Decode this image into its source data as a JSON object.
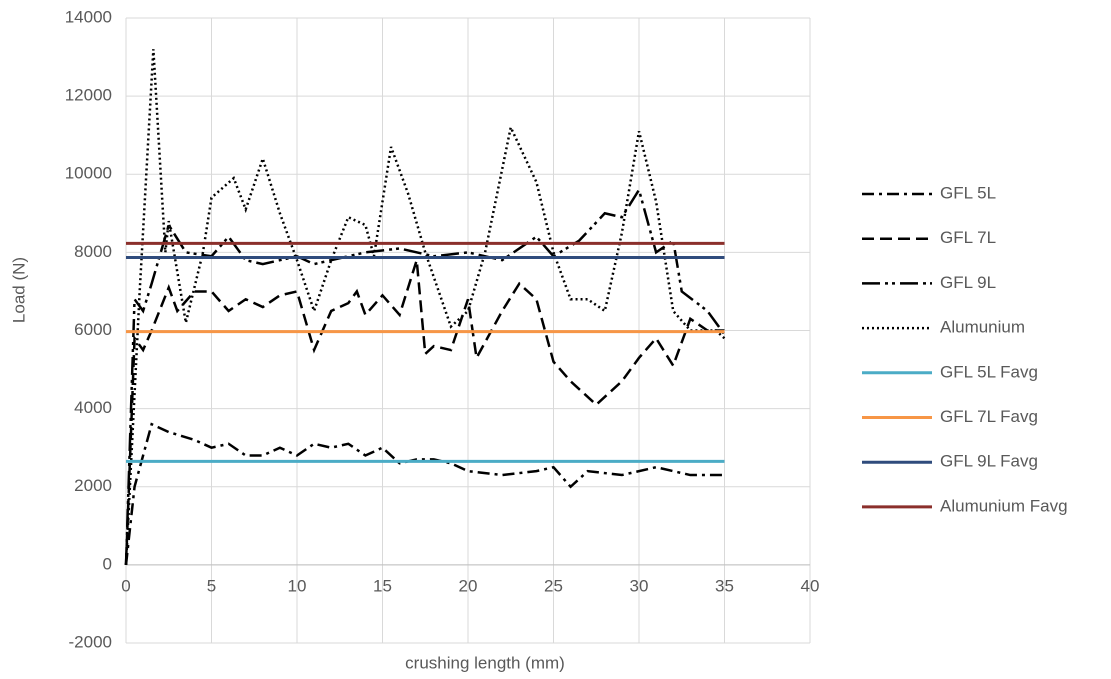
{
  "chart_data": {
    "type": "line",
    "x_label": "crushing length (mm)",
    "y_label": "Load (N)",
    "xlim": [
      0,
      40
    ],
    "xticks": [
      0,
      5,
      10,
      15,
      20,
      25,
      30,
      35,
      40
    ],
    "ylim": [
      -2000,
      14000
    ],
    "yticks": [
      -2000,
      0,
      2000,
      4000,
      6000,
      8000,
      10000,
      12000,
      14000
    ],
    "grid": true,
    "legend": "right",
    "series": [
      {
        "name": "GFL 5L",
        "color": "#000000",
        "style": "dash-dot",
        "x": [
          0,
          0.5,
          1,
          1.5,
          2.5,
          4,
          5,
          6,
          7,
          8,
          9,
          10,
          11,
          12,
          13,
          14,
          15,
          16,
          17,
          18,
          19,
          20,
          22,
          24,
          25,
          26,
          27,
          29,
          31,
          33,
          35
        ],
        "values": [
          0,
          2000,
          2800,
          3600,
          3400,
          3200,
          3000,
          3100,
          2800,
          2800,
          3000,
          2800,
          3100,
          3000,
          3100,
          2800,
          3000,
          2600,
          2700,
          2700,
          2600,
          2400,
          2300,
          2400,
          2500,
          2000,
          2400,
          2300,
          2500,
          2300,
          2300
        ]
      },
      {
        "name": "GFL 7L",
        "color": "#000000",
        "style": "dash",
        "x": [
          0,
          0.5,
          1,
          1.5,
          2.5,
          3,
          4,
          5,
          6,
          7,
          8,
          9,
          10,
          11,
          12,
          13,
          13.5,
          14,
          15,
          16,
          17,
          17.5,
          18,
          19,
          20,
          20.5,
          22,
          23,
          24,
          25,
          26,
          27.5,
          29,
          30,
          31,
          32,
          33,
          34,
          35
        ],
        "values": [
          0,
          5800,
          5500,
          6000,
          7100,
          6500,
          7000,
          7000,
          6500,
          6800,
          6600,
          6900,
          7000,
          5500,
          6500,
          6700,
          7000,
          6400,
          6900,
          6400,
          7800,
          5400,
          5600,
          5500,
          6800,
          5300,
          6500,
          7200,
          6800,
          5200,
          4700,
          4100,
          4700,
          5300,
          5800,
          5100,
          6300,
          6000,
          6000
        ]
      },
      {
        "name": "GFL 9L",
        "color": "#000000",
        "style": "dash-dot-dot",
        "x": [
          0,
          0.5,
          1,
          1.5,
          2.5,
          3.5,
          5,
          6,
          7,
          8,
          10,
          11,
          12,
          14,
          16,
          18,
          20,
          22,
          24,
          25,
          26.5,
          28,
          29,
          30,
          31,
          32,
          32.5,
          34,
          35
        ],
        "values": [
          0,
          6800,
          6500,
          7200,
          8700,
          8000,
          7900,
          8400,
          7800,
          7700,
          7900,
          7700,
          7800,
          8000,
          8100,
          7900,
          8000,
          7800,
          8400,
          7900,
          8300,
          9000,
          8900,
          9600,
          8000,
          8300,
          7000,
          6500,
          5900
        ]
      },
      {
        "name": "Alumunium",
        "color": "#000000",
        "style": "dot",
        "x": [
          0,
          0.8,
          1.6,
          2.3,
          2.5,
          3.5,
          4.5,
          5,
          6.3,
          7,
          8,
          9,
          10,
          11,
          12,
          13,
          14,
          14.5,
          15.5,
          16.5,
          17.5,
          19,
          20,
          21,
          22.5,
          24,
          25,
          26,
          27,
          28,
          29,
          30,
          31,
          32,
          33,
          34.5,
          35
        ],
        "values": [
          0,
          7000,
          13200,
          8000,
          8800,
          6200,
          8000,
          9400,
          9900,
          9100,
          10400,
          9000,
          7800,
          6500,
          7800,
          8900,
          8700,
          7900,
          10700,
          9500,
          8000,
          6100,
          6500,
          8000,
          11200,
          9800,
          8000,
          6800,
          6800,
          6500,
          8500,
          11100,
          9300,
          6500,
          6000,
          6000,
          5800
        ]
      },
      {
        "name": "GFL 5L Favg",
        "color": "#4bacc6",
        "style": "solid",
        "x": [
          0,
          35
        ],
        "values": [
          2650,
          2650
        ]
      },
      {
        "name": "GFL 7L Favg",
        "color": "#f79646",
        "style": "solid",
        "x": [
          0,
          35
        ],
        "values": [
          5970,
          5970
        ]
      },
      {
        "name": "GFL 9L Favg",
        "color": "#2f4b7c",
        "style": "solid",
        "x": [
          0,
          35
        ],
        "values": [
          7870,
          7870
        ]
      },
      {
        "name": "Alumunium Favg",
        "color": "#8b2f2b",
        "style": "solid",
        "x": [
          0,
          35
        ],
        "values": [
          8230,
          8230
        ]
      }
    ]
  }
}
